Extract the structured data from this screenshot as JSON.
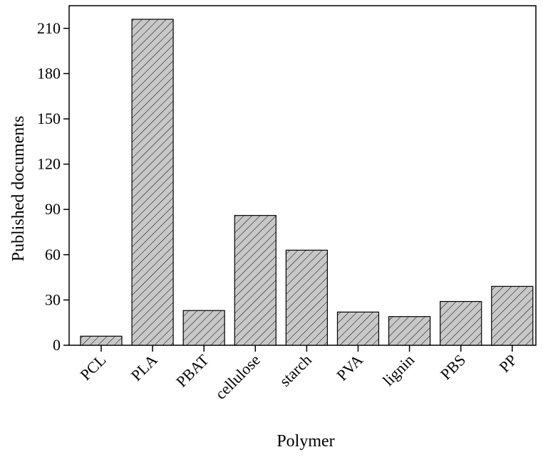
{
  "chart_data": {
    "type": "bar",
    "title": "",
    "xlabel": "Polymer",
    "ylabel": "Published documents",
    "categories": [
      "PCL",
      "PLA",
      "PBAT",
      "cellulose",
      "starch",
      "PVA",
      "lignin",
      "PBS",
      "PP"
    ],
    "values": [
      6,
      216,
      23,
      86,
      63,
      22,
      19,
      29,
      39
    ],
    "ylim": [
      0,
      225
    ],
    "yticks": [
      0,
      30,
      60,
      90,
      120,
      150,
      180,
      210
    ],
    "grid": false,
    "bar_fill": "#c8c8c8",
    "bar_pattern": "diagonal-hatch"
  }
}
